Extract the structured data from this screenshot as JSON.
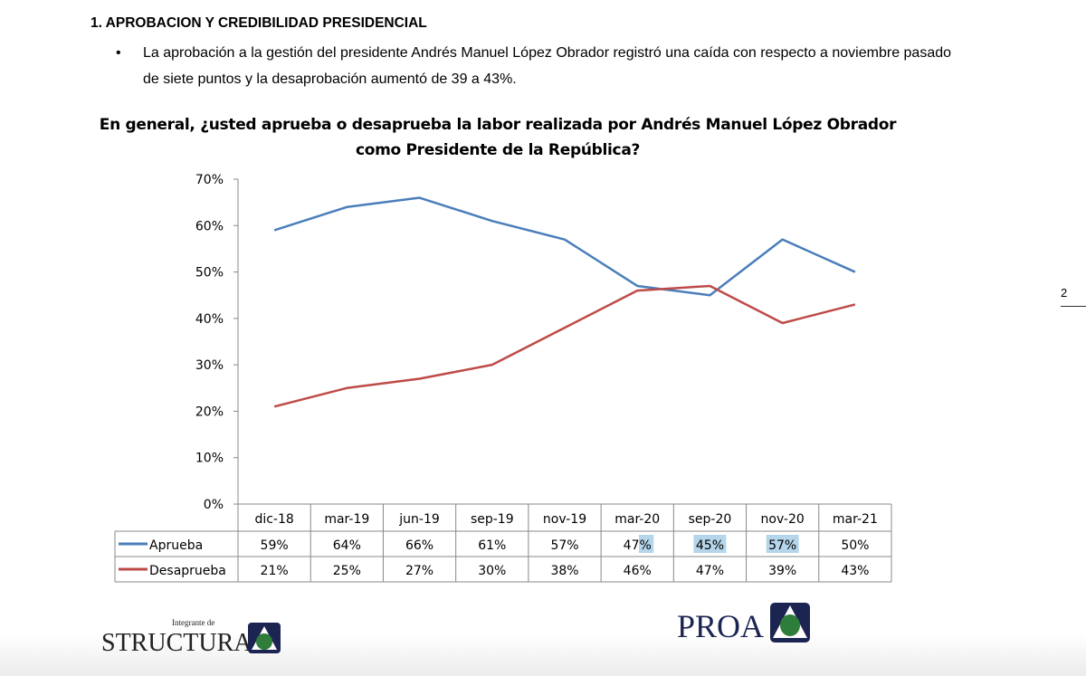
{
  "section_heading": "1.  APROBACION Y CREDIBILIDAD PRESIDENCIAL",
  "bullet": {
    "marker": "•",
    "text": "La aprobación a la gestión del presidente Andrés Manuel López Obrador registró una caída con respecto a noviembre pasado de siete puntos y la desaprobación aumentó de 39 a 43%."
  },
  "page_number": "2",
  "chart_data": {
    "type": "line",
    "title": "En general, ¿usted aprueba o desaprueba la labor realizada por Andrés Manuel López Obrador como Presidente de la República?",
    "categories": [
      "dic-18",
      "mar-19",
      "jun-19",
      "sep-19",
      "nov-19",
      "mar-20",
      "sep-20",
      "nov-20",
      "mar-21"
    ],
    "yticks": [
      "0%",
      "10%",
      "20%",
      "30%",
      "40%",
      "50%",
      "60%",
      "70%"
    ],
    "ylim": [
      0,
      70
    ],
    "grid": false,
    "legend": "data-table-below",
    "series": [
      {
        "name": "Aprueba",
        "color": "#4a7ebb",
        "values": [
          59,
          64,
          66,
          61,
          57,
          47,
          45,
          57,
          50
        ],
        "labels": [
          "59%",
          "64%",
          "66%",
          "61%",
          "57%",
          "47%",
          "45%",
          "57%",
          "50%"
        ]
      },
      {
        "name": "Desaprueba",
        "color": "#be4b48",
        "values": [
          21,
          25,
          27,
          30,
          38,
          46,
          47,
          39,
          43
        ],
        "labels": [
          "21%",
          "25%",
          "27%",
          "30%",
          "38%",
          "46%",
          "47%",
          "39%",
          "43%"
        ]
      }
    ]
  },
  "logos": {
    "structura_small": "Integrante de",
    "structura": "STRUCTURA",
    "proa": "PROA"
  }
}
